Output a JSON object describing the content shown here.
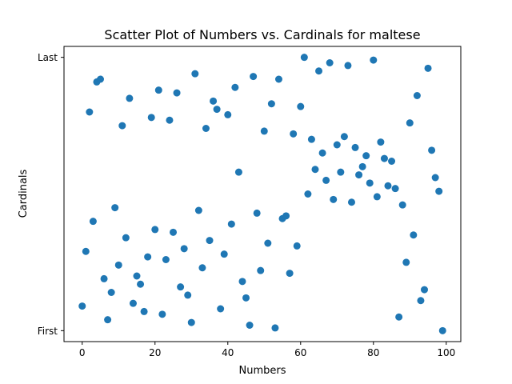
{
  "chart_data": {
    "type": "scatter",
    "title": "Scatter Plot of Numbers vs. Cardinals for maltese",
    "xlabel": "Numbers",
    "ylabel": "Cardinals",
    "xlim": [
      -5,
      104
    ],
    "ylim": [
      -0.04,
      1.04
    ],
    "xticks": [
      0,
      20,
      40,
      60,
      80,
      100
    ],
    "yticks": [
      {
        "value": 0,
        "label": "First"
      },
      {
        "value": 1,
        "label": "Last"
      }
    ],
    "grid": false,
    "color": "#1f77b4",
    "points": [
      {
        "x": 0,
        "y": 0.09
      },
      {
        "x": 1,
        "y": 0.29
      },
      {
        "x": 2,
        "y": 0.8
      },
      {
        "x": 3,
        "y": 0.4
      },
      {
        "x": 4,
        "y": 0.91
      },
      {
        "x": 5,
        "y": 0.92
      },
      {
        "x": 6,
        "y": 0.19
      },
      {
        "x": 7,
        "y": 0.04
      },
      {
        "x": 8,
        "y": 0.14
      },
      {
        "x": 9,
        "y": 0.45
      },
      {
        "x": 10,
        "y": 0.24
      },
      {
        "x": 11,
        "y": 0.75
      },
      {
        "x": 12,
        "y": 0.34
      },
      {
        "x": 13,
        "y": 0.85
      },
      {
        "x": 14,
        "y": 0.1
      },
      {
        "x": 15,
        "y": 0.2
      },
      {
        "x": 16,
        "y": 0.17
      },
      {
        "x": 17,
        "y": 0.07
      },
      {
        "x": 18,
        "y": 0.27
      },
      {
        "x": 19,
        "y": 0.78
      },
      {
        "x": 20,
        "y": 0.37
      },
      {
        "x": 21,
        "y": 0.88
      },
      {
        "x": 22,
        "y": 0.06
      },
      {
        "x": 23,
        "y": 0.26
      },
      {
        "x": 24,
        "y": 0.77
      },
      {
        "x": 25,
        "y": 0.36
      },
      {
        "x": 26,
        "y": 0.87
      },
      {
        "x": 27,
        "y": 0.16
      },
      {
        "x": 28,
        "y": 0.3
      },
      {
        "x": 29,
        "y": 0.13
      },
      {
        "x": 30,
        "y": 0.03
      },
      {
        "x": 31,
        "y": 0.94
      },
      {
        "x": 32,
        "y": 0.44
      },
      {
        "x": 33,
        "y": 0.23
      },
      {
        "x": 34,
        "y": 0.74
      },
      {
        "x": 35,
        "y": 0.33
      },
      {
        "x": 36,
        "y": 0.84
      },
      {
        "x": 37,
        "y": 0.81
      },
      {
        "x": 38,
        "y": 0.08
      },
      {
        "x": 39,
        "y": 0.28
      },
      {
        "x": 40,
        "y": 0.79
      },
      {
        "x": 41,
        "y": 0.39
      },
      {
        "x": 42,
        "y": 0.89
      },
      {
        "x": 43,
        "y": 0.58
      },
      {
        "x": 44,
        "y": 0.18
      },
      {
        "x": 45,
        "y": 0.12
      },
      {
        "x": 46,
        "y": 0.02
      },
      {
        "x": 47,
        "y": 0.93
      },
      {
        "x": 48,
        "y": 0.43
      },
      {
        "x": 49,
        "y": 0.22
      },
      {
        "x": 50,
        "y": 0.73
      },
      {
        "x": 51,
        "y": 0.32
      },
      {
        "x": 52,
        "y": 0.83
      },
      {
        "x": 53,
        "y": 0.01
      },
      {
        "x": 54,
        "y": 0.92
      },
      {
        "x": 55,
        "y": 0.41
      },
      {
        "x": 56,
        "y": 0.42
      },
      {
        "x": 57,
        "y": 0.21
      },
      {
        "x": 58,
        "y": 0.72
      },
      {
        "x": 59,
        "y": 0.31
      },
      {
        "x": 60,
        "y": 0.82
      },
      {
        "x": 61,
        "y": 1.0
      },
      {
        "x": 62,
        "y": 0.5
      },
      {
        "x": 63,
        "y": 0.7
      },
      {
        "x": 64,
        "y": 0.59
      },
      {
        "x": 65,
        "y": 0.95
      },
      {
        "x": 66,
        "y": 0.65
      },
      {
        "x": 67,
        "y": 0.55
      },
      {
        "x": 68,
        "y": 0.98
      },
      {
        "x": 69,
        "y": 0.48
      },
      {
        "x": 70,
        "y": 0.68
      },
      {
        "x": 71,
        "y": 0.58
      },
      {
        "x": 72,
        "y": 0.71
      },
      {
        "x": 73,
        "y": 0.97
      },
      {
        "x": 74,
        "y": 0.47
      },
      {
        "x": 75,
        "y": 0.67
      },
      {
        "x": 76,
        "y": 0.57
      },
      {
        "x": 77,
        "y": 0.6
      },
      {
        "x": 78,
        "y": 0.64
      },
      {
        "x": 79,
        "y": 0.54
      },
      {
        "x": 80,
        "y": 0.99
      },
      {
        "x": 81,
        "y": 0.49
      },
      {
        "x": 82,
        "y": 0.69
      },
      {
        "x": 83,
        "y": 0.63
      },
      {
        "x": 84,
        "y": 0.53
      },
      {
        "x": 85,
        "y": 0.62
      },
      {
        "x": 86,
        "y": 0.52
      },
      {
        "x": 87,
        "y": 0.05
      },
      {
        "x": 88,
        "y": 0.46
      },
      {
        "x": 89,
        "y": 0.25
      },
      {
        "x": 90,
        "y": 0.76
      },
      {
        "x": 91,
        "y": 0.35
      },
      {
        "x": 92,
        "y": 0.86
      },
      {
        "x": 93,
        "y": 0.11
      },
      {
        "x": 94,
        "y": 0.15
      },
      {
        "x": 95,
        "y": 0.96
      },
      {
        "x": 96,
        "y": 0.66
      },
      {
        "x": 97,
        "y": 0.56
      },
      {
        "x": 98,
        "y": 0.51
      },
      {
        "x": 99,
        "y": 0.0
      }
    ]
  }
}
